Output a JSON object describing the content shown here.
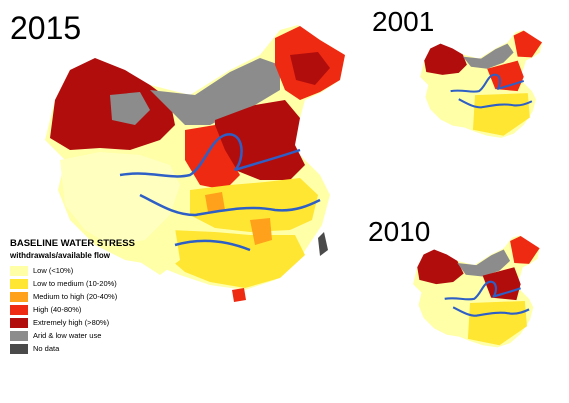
{
  "years": {
    "main": "2015",
    "inset_top": "2001",
    "inset_bottom": "2010"
  },
  "legend": {
    "title": "BASELINE WATER STRESS",
    "subtitle": "withdrawals/available flow",
    "items": [
      {
        "label": "Low (<10%)",
        "color": "#ffffa8"
      },
      {
        "label": "Low to medium (10-20%)",
        "color": "#ffe633"
      },
      {
        "label": "Medium to high (20-40%)",
        "color": "#ffa11a"
      },
      {
        "label": "High (40-80%)",
        "color": "#ee2a12"
      },
      {
        "label": "Extremely high (>80%)",
        "color": "#b10d0d"
      },
      {
        "label": "Arid & low water use",
        "color": "#8c8c8c"
      },
      {
        "label": "No data",
        "color": "#4a4a4a"
      }
    ]
  },
  "river_color": "#2d5fc6"
}
